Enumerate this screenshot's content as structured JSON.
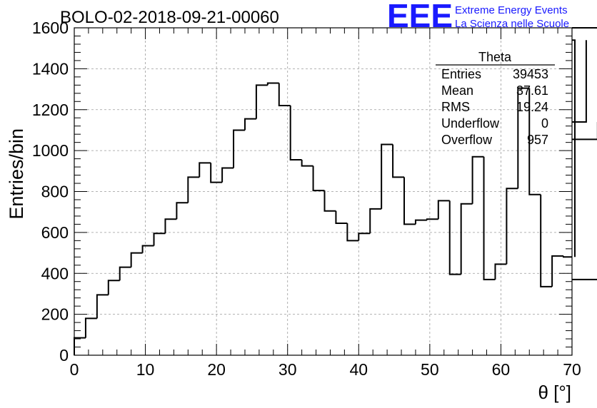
{
  "chart_data": {
    "type": "bar",
    "title": "BOLO-02-2018-09-21-00060",
    "xlabel": "θ [°]",
    "ylabel": "Entries/bin",
    "xlim": [
      0,
      70
    ],
    "ylim": [
      0,
      1600
    ],
    "x_ticks": [
      "0",
      "10",
      "20",
      "30",
      "40",
      "50",
      "60",
      "70"
    ],
    "y_ticks": [
      "0",
      "200",
      "400",
      "600",
      "800",
      "1000",
      "1200",
      "1400",
      "1600"
    ],
    "grid": true,
    "bin_width": 1.6,
    "bin_edges_start": 0,
    "values": [
      85,
      180,
      295,
      365,
      430,
      500,
      535,
      595,
      665,
      745,
      870,
      940,
      845,
      915,
      1100,
      1155,
      1320,
      1330,
      1220,
      955,
      925,
      805,
      705,
      645,
      560,
      595,
      715,
      1030,
      870,
      640,
      660,
      665,
      755,
      395,
      740,
      970,
      370,
      445,
      815,
      1305,
      785,
      335,
      485,
      480,
      1540,
      1140,
      1055,
      370,
      1600
    ],
    "stats_box": {
      "title": "Theta",
      "rows": [
        {
          "label": "Entries",
          "value": "39453"
        },
        {
          "label": "Mean",
          "value": "37.61"
        },
        {
          "label": "RMS",
          "value": "19.24"
        },
        {
          "label": "Underflow",
          "value": "0"
        },
        {
          "label": "Overflow",
          "value": "957"
        }
      ]
    },
    "logo": {
      "mark": "EEE",
      "line1": "Extreme Energy Events",
      "line2": "La Scienza nelle Scuole",
      "color": "#1a1aff"
    }
  }
}
